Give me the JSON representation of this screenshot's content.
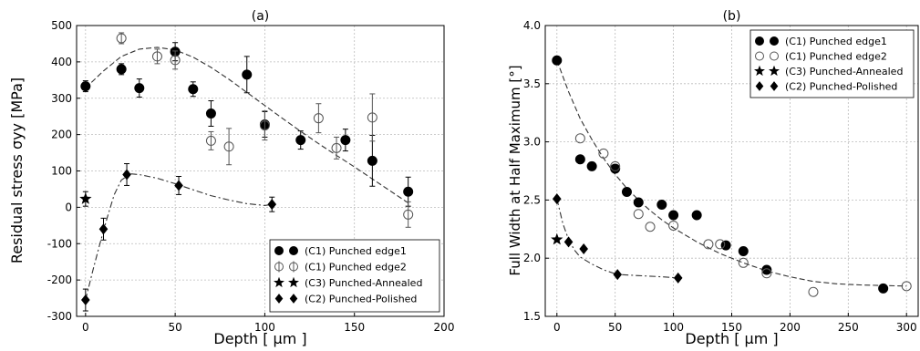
{
  "chart_data": [
    {
      "type": "scatter",
      "title": "(a)",
      "xlabel": "Depth [ μm ]",
      "ylabel": "Residual stress σyy [MPa]",
      "xlim": [
        -5,
        200
      ],
      "ylim": [
        -300,
        500
      ],
      "xticks": [
        0,
        50,
        100,
        150,
        200
      ],
      "yticks": [
        -300,
        -200,
        -100,
        0,
        100,
        200,
        300,
        400,
        500
      ],
      "grid": true,
      "legend_position": "bottom-right",
      "series": [
        {
          "name": "(C1) Punched edge1",
          "marker": "filled-circle",
          "x": [
            0,
            20,
            30,
            50,
            60,
            70,
            90,
            100,
            120,
            145,
            160,
            180
          ],
          "y": [
            333,
            380,
            328,
            428,
            325,
            258,
            365,
            228,
            185,
            185,
            128,
            43
          ],
          "err": [
            15,
            15,
            25,
            25,
            20,
            35,
            50,
            35,
            25,
            30,
            70,
            40
          ]
        },
        {
          "name": "(C1) Punched edge2",
          "marker": "open-circle",
          "x": [
            20,
            40,
            50,
            70,
            80,
            100,
            130,
            140,
            160,
            180
          ],
          "y": [
            465,
            415,
            405,
            183,
            167,
            225,
            245,
            163,
            247,
            -20
          ],
          "err": [
            15,
            20,
            25,
            25,
            50,
            40,
            40,
            30,
            65,
            35
          ]
        },
        {
          "name": "(C3) Punched-Annealed",
          "marker": "star",
          "x": [
            0
          ],
          "y": [
            23
          ],
          "err": [
            20
          ]
        },
        {
          "name": "(C2) Punched-Polished",
          "marker": "diamond",
          "x": [
            0,
            10,
            23,
            52,
            104
          ],
          "y": [
            -255,
            -60,
            90,
            60,
            8
          ],
          "err": [
            30,
            30,
            30,
            25,
            20
          ]
        }
      ],
      "fit_lines": [
        {
          "style": "dashed",
          "x": [
            0,
            10,
            20,
            30,
            40,
            50,
            60,
            70,
            80,
            90,
            100,
            110,
            120,
            130,
            140,
            150,
            160,
            170,
            180
          ],
          "y": [
            328,
            375,
            415,
            435,
            440,
            433,
            413,
            385,
            352,
            316,
            280,
            244,
            209,
            175,
            143,
            111,
            78,
            45,
            12
          ]
        },
        {
          "style": "dash-dot",
          "x": [
            0,
            4,
            8,
            12,
            16,
            20,
            25,
            30,
            40,
            50,
            60,
            70,
            80,
            90,
            100,
            104
          ],
          "y": [
            -255,
            -175,
            -100,
            -30,
            35,
            75,
            92,
            90,
            80,
            65,
            48,
            32,
            20,
            10,
            5,
            8
          ]
        }
      ]
    },
    {
      "type": "scatter",
      "title": "(b)",
      "xlabel": "Depth [ μm ]",
      "ylabel": "Full Width at Half Maximum [°]",
      "xlim": [
        -10,
        310
      ],
      "ylim": [
        1.5,
        4.0
      ],
      "xticks": [
        0,
        50,
        100,
        150,
        200,
        250,
        300
      ],
      "yticks": [
        1.5,
        2.0,
        2.5,
        3.0,
        3.5,
        4.0
      ],
      "grid": true,
      "legend_position": "top-right",
      "series": [
        {
          "name": "(C1) Punched edge1",
          "marker": "filled-circle",
          "x": [
            0,
            20,
            30,
            50,
            60,
            70,
            90,
            100,
            120,
            145,
            160,
            180,
            280
          ],
          "y": [
            3.7,
            2.85,
            2.79,
            2.77,
            2.57,
            2.48,
            2.46,
            2.37,
            2.37,
            2.11,
            2.06,
            1.9,
            1.74
          ]
        },
        {
          "name": "(C1) Punched edge2",
          "marker": "open-circle",
          "x": [
            20,
            40,
            50,
            70,
            80,
            100,
            130,
            140,
            160,
            180,
            220,
            300
          ],
          "y": [
            3.03,
            2.9,
            2.79,
            2.38,
            2.27,
            2.28,
            2.12,
            2.12,
            1.96,
            1.87,
            1.71,
            1.76
          ]
        },
        {
          "name": "(C3) Punched-Annealed",
          "marker": "star",
          "x": [
            0
          ],
          "y": [
            2.16
          ]
        },
        {
          "name": "(C2) Punched-Polished",
          "marker": "diamond",
          "x": [
            0,
            10,
            23,
            52,
            104
          ],
          "y": [
            2.51,
            2.14,
            2.08,
            1.86,
            1.83
          ]
        }
      ],
      "fit_lines": [
        {
          "style": "dashed",
          "x": [
            0,
            10,
            20,
            30,
            40,
            50,
            60,
            70,
            80,
            90,
            100,
            120,
            140,
            160,
            180,
            200,
            220,
            240,
            260,
            280,
            300
          ],
          "y": [
            3.7,
            3.43,
            3.2,
            3.02,
            2.86,
            2.72,
            2.6,
            2.5,
            2.41,
            2.33,
            2.26,
            2.14,
            2.04,
            1.96,
            1.89,
            1.84,
            1.8,
            1.78,
            1.77,
            1.765,
            1.76
          ]
        },
        {
          "style": "dash-dot",
          "x": [
            0,
            5,
            10,
            15,
            20,
            30,
            40,
            52,
            70,
            90,
            104
          ],
          "y": [
            2.51,
            2.3,
            2.16,
            2.07,
            2.01,
            1.95,
            1.9,
            1.86,
            1.85,
            1.84,
            1.83
          ]
        }
      ]
    }
  ]
}
